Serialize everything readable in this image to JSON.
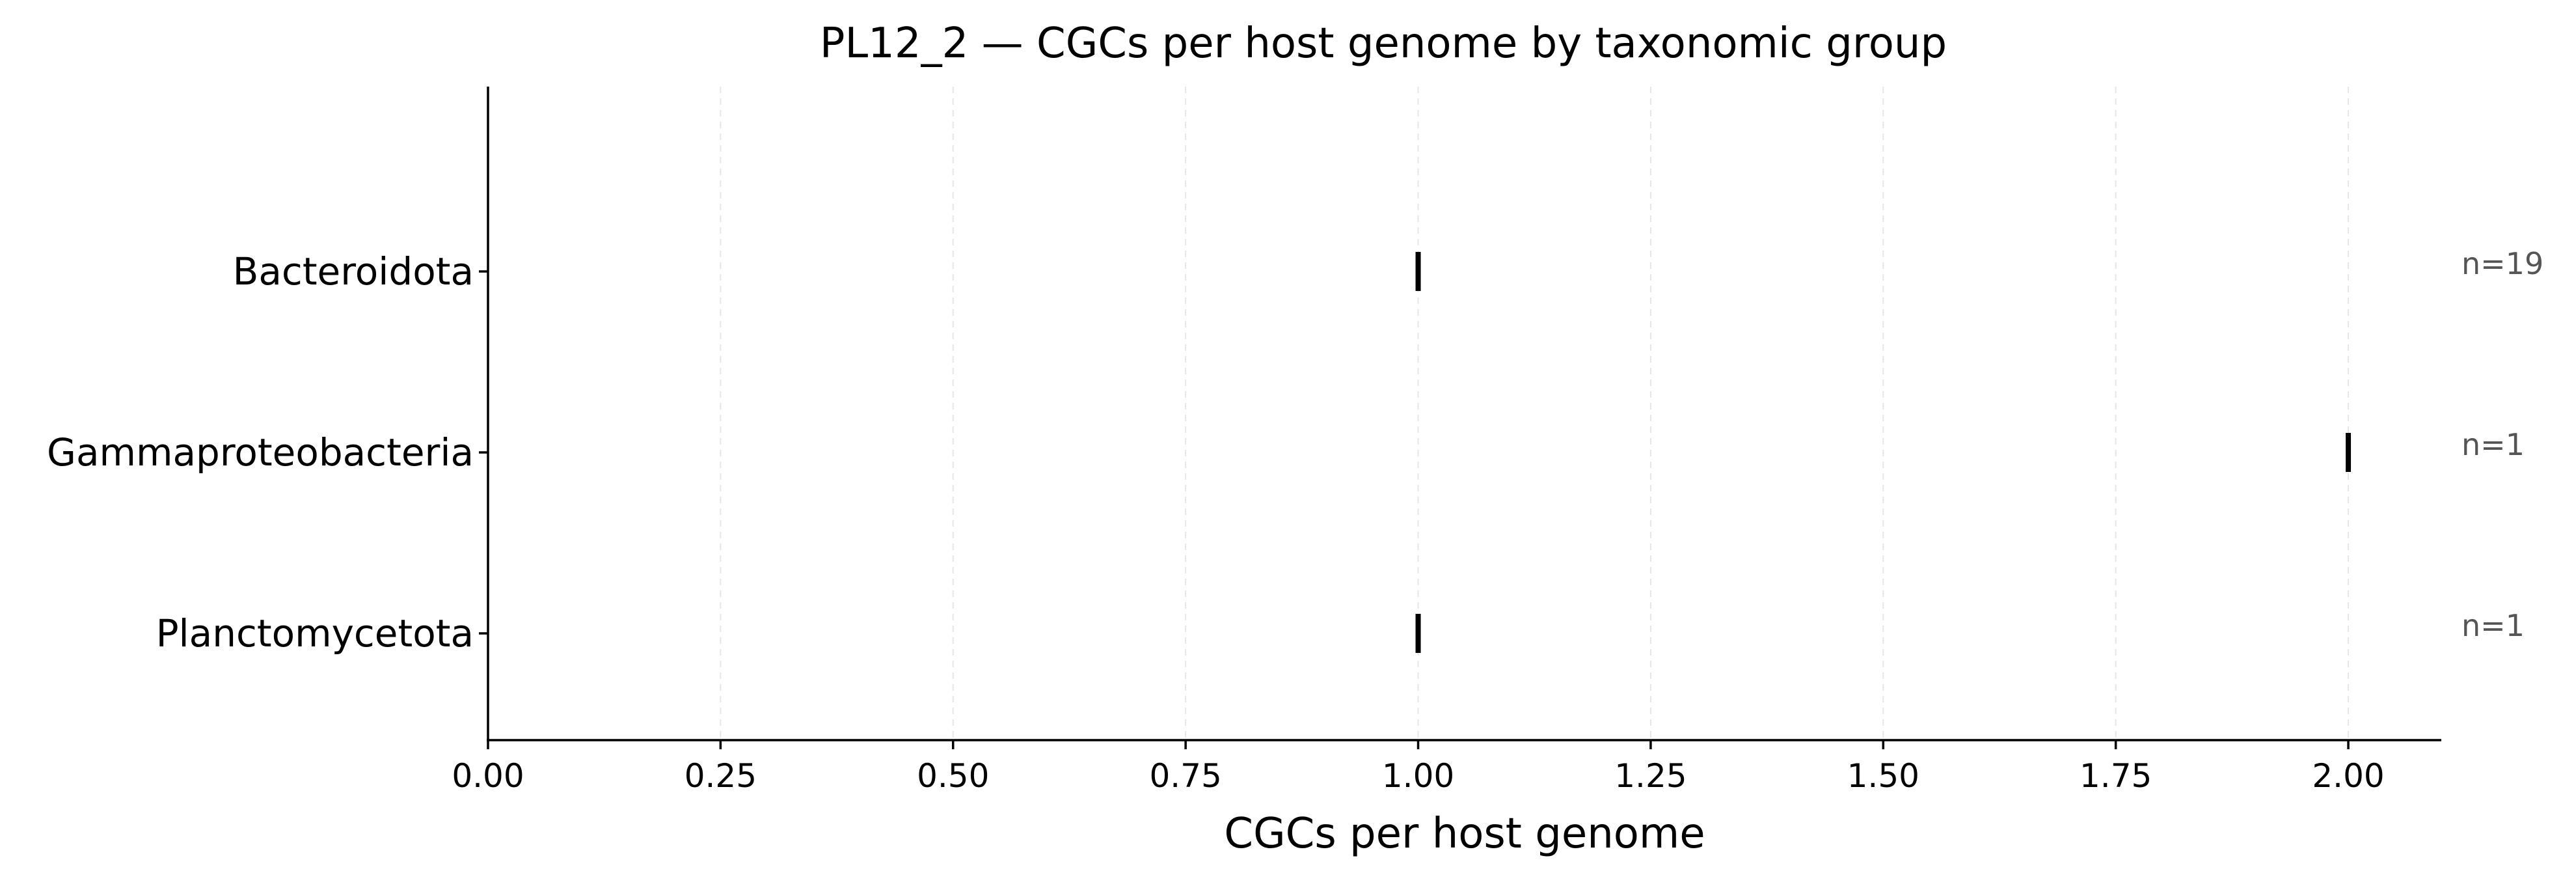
{
  "chart_data": {
    "type": "scatter",
    "title": "PL12_2 — CGCs per host genome by taxonomic group",
    "xlabel": "CGCs per host genome",
    "ylabel": "",
    "xlim": [
      0,
      2.1
    ],
    "xticks": [
      "0.00",
      "0.25",
      "0.50",
      "0.75",
      "1.00",
      "1.25",
      "1.50",
      "1.75",
      "2.00"
    ],
    "grid": "x-dashed",
    "categories": [
      "Bacteroidota",
      "Gammaproteobacteria",
      "Planctomycetota"
    ],
    "values": [
      1.0,
      2.0,
      1.0
    ],
    "counts": [
      "n=19",
      "n=1",
      "n=1"
    ],
    "colors": {
      "mark": "#000000",
      "count_label": "#555555",
      "grid": "#e6e6e6"
    }
  }
}
